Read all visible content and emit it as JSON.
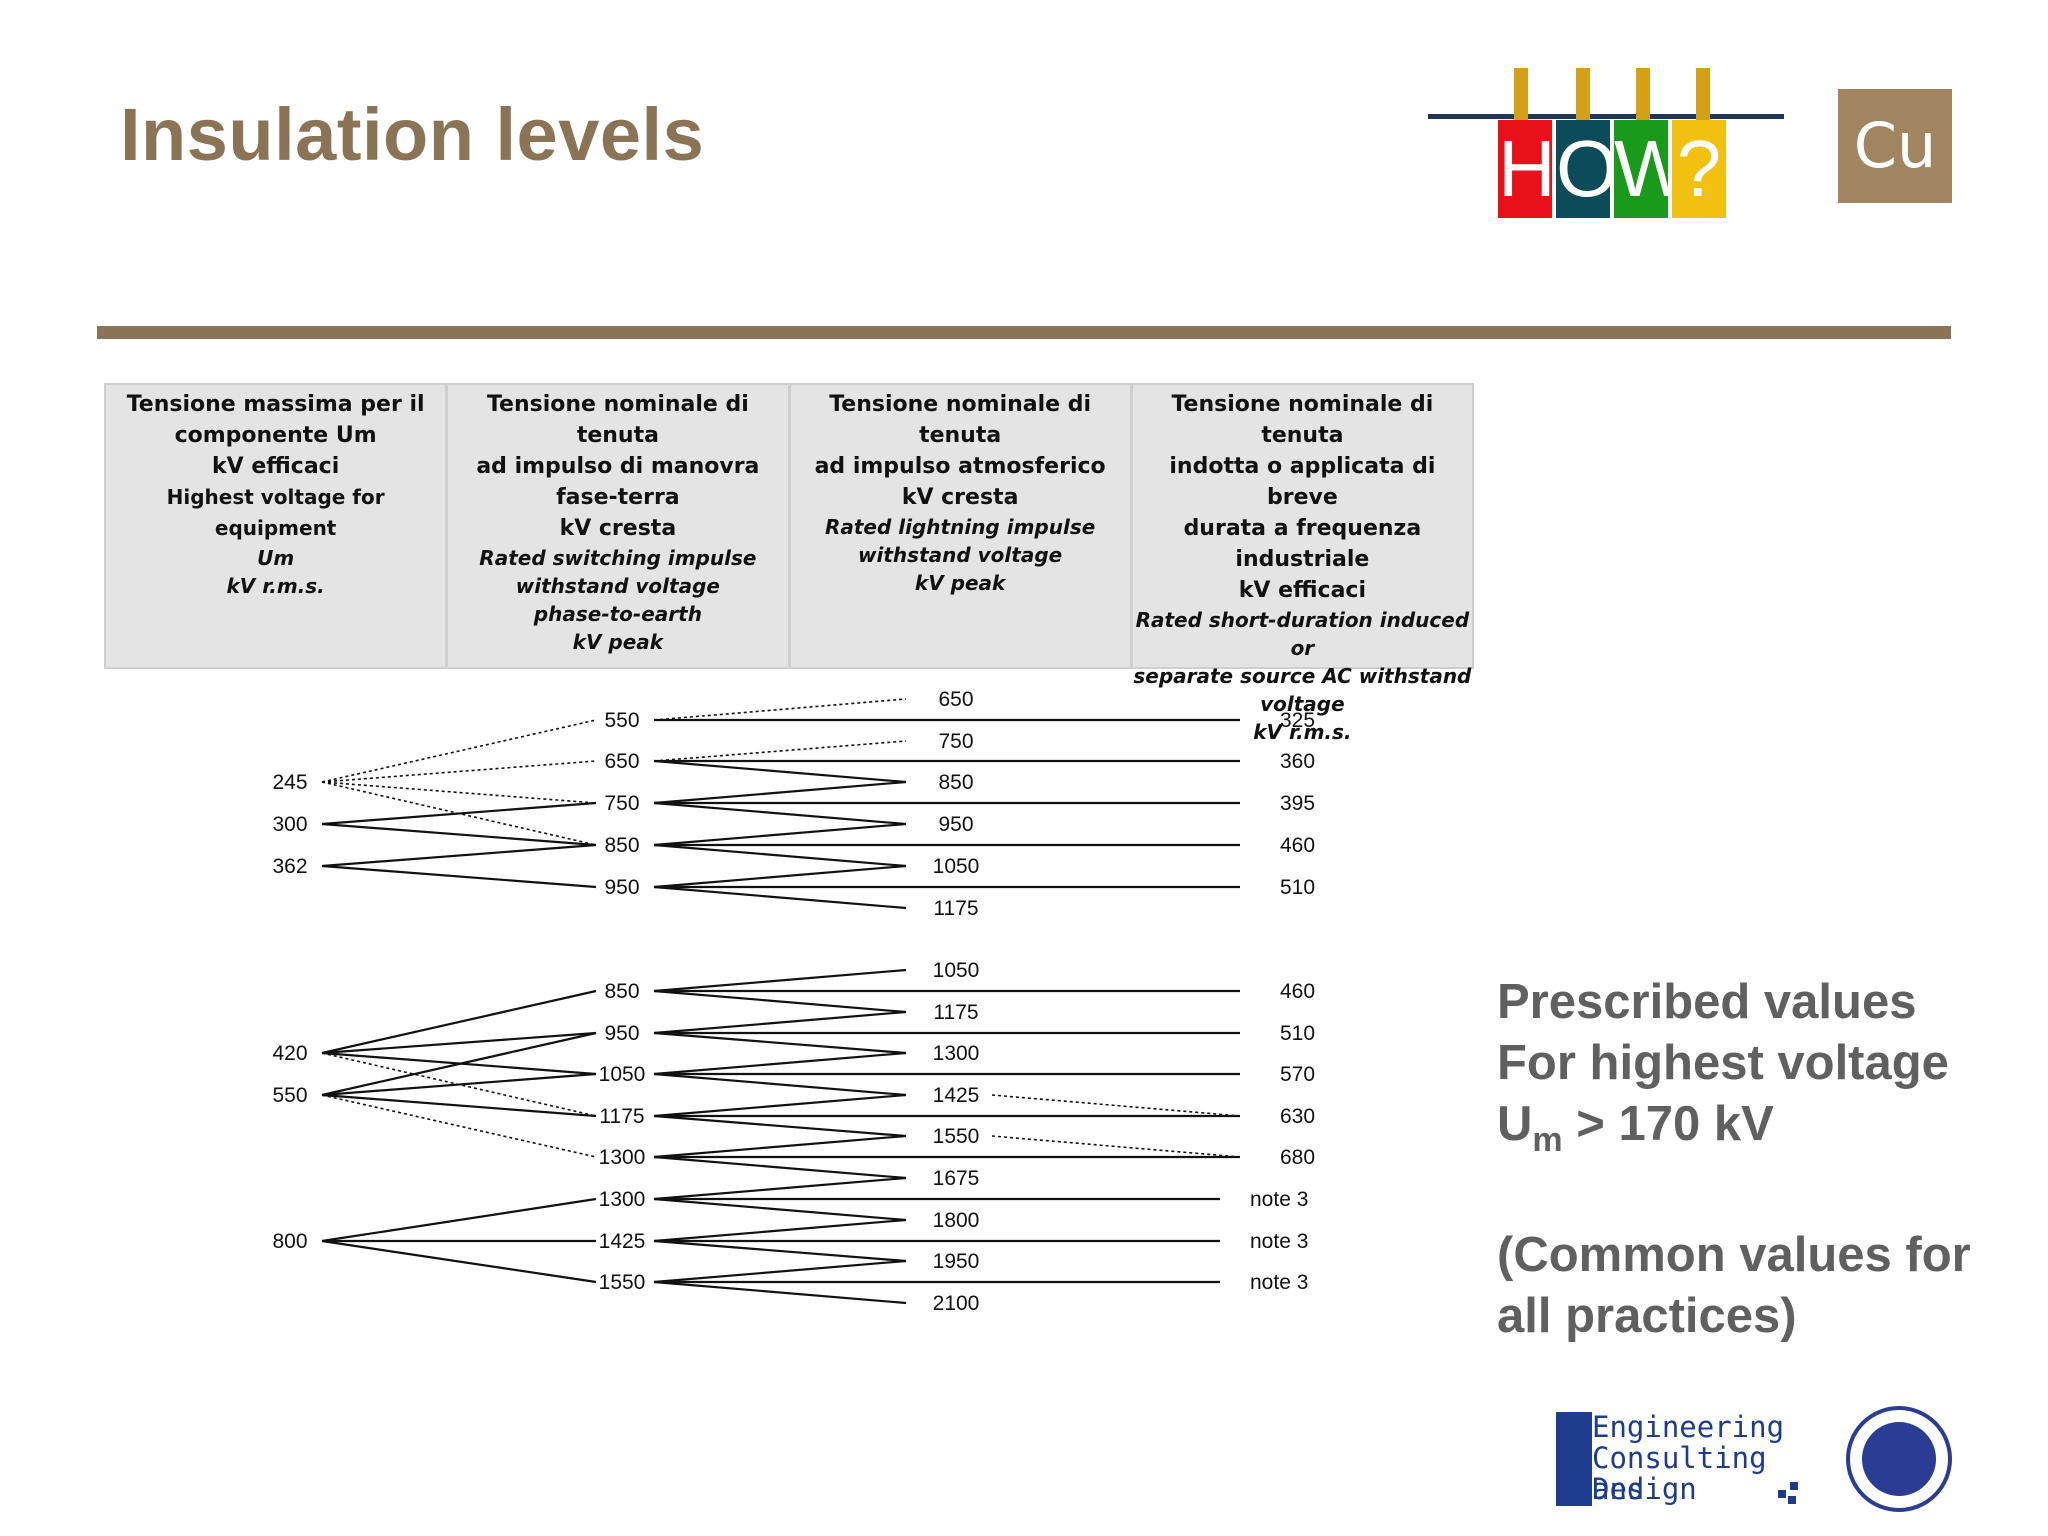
{
  "slide": {
    "title": "Insulation levels"
  },
  "logos": {
    "how_letters": [
      "H",
      "O",
      "W",
      "?"
    ],
    "how_colors": [
      "#e8111b",
      "#0b4b5a",
      "#1a9a1a",
      "#f2c00e"
    ],
    "cu": "Cu",
    "ecd_lines": [
      "Engineering",
      "Consulting and",
      "Design"
    ]
  },
  "table_header": [
    {
      "nominal": [
        "Tensione massima per il",
        "componente Um",
        "kV efficaci",
        "Highest voltage for equipment"
      ],
      "english": [
        "Um",
        "kV r.m.s."
      ]
    },
    {
      "nominal": [
        "Tensione nominale di tenuta",
        "ad impulso di manovra",
        "fase-terra",
        "kV cresta"
      ],
      "english": [
        "Rated switching impulse",
        "withstand voltage",
        "phase-to-earth",
        "kV peak"
      ]
    },
    {
      "nominal": [
        "Tensione nominale di tenuta",
        "ad impulso atmosferico",
        "kV cresta"
      ],
      "english": [
        "Rated lightning impulse",
        "withstand voltage",
        "kV peak"
      ]
    },
    {
      "nominal": [
        "Tensione nominale di tenuta",
        "indotta o applicata di breve",
        "durata a frequenza",
        "industriale",
        "kV efficaci"
      ],
      "english": [
        "Rated short-duration induced or",
        "separate source AC withstand",
        "voltage",
        "kV r.m.s."
      ]
    }
  ],
  "diagram": {
    "groups": [
      {
        "um": [
          "245",
          "300",
          "362"
        ],
        "switching": [
          "550",
          "650",
          "750",
          "850",
          "950"
        ],
        "lightning": [
          "650",
          "750",
          "850",
          "950",
          "1050",
          "1175"
        ],
        "ac": [
          "325",
          "360",
          "395",
          "460",
          "510"
        ]
      },
      {
        "um": [
          "420",
          "550",
          "800"
        ],
        "switching": [
          "850",
          "950",
          "1050",
          "1175",
          "1300",
          "1300",
          "1425",
          "1550"
        ],
        "lightning": [
          "1050",
          "1175",
          "1300",
          "1425",
          "1550",
          "1675",
          "1800",
          "1950",
          "2100"
        ],
        "ac": [
          "460",
          "510",
          "570",
          "630",
          "680",
          "note 3",
          "note 3",
          "note 3"
        ]
      }
    ]
  },
  "side_note": {
    "line1": "Prescribed values",
    "line2": "For highest voltage",
    "um_main": "U",
    "um_sub": "m",
    "um_rest": " > 170 kV",
    "line4": "(Common values for",
    "line5": "all practices)"
  }
}
